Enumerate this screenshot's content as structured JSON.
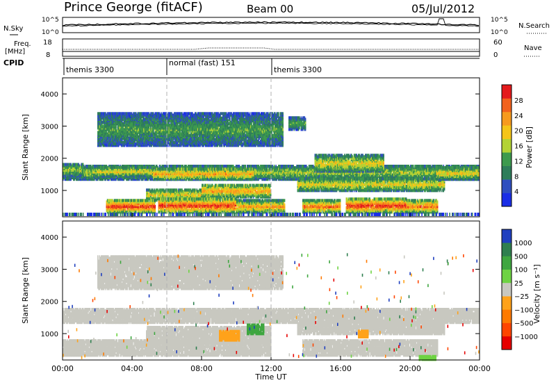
{
  "header": {
    "station": "Prince George (fitACF)",
    "beam": "Beam 00",
    "date": "05/Jul/2012"
  },
  "noise_panel": {
    "left_label": "N.Sky",
    "right_label": "N.Search",
    "left_ticks": [
      "10^5",
      "10^0"
    ],
    "right_ticks": [
      "10^5",
      "10^0"
    ]
  },
  "freq_panel": {
    "left_label_1": "Freq.",
    "left_label_2": "[MHz]",
    "left_ticks": [
      "18",
      "8"
    ],
    "right_label": "Nave",
    "right_ticks": [
      "60",
      "0"
    ]
  },
  "cpid_panel": {
    "label": "CPID",
    "segments": [
      {
        "start_hour": 0,
        "end_hour": 6,
        "name": "themis 3300"
      },
      {
        "start_hour": 6,
        "end_hour": 12,
        "name": "normal (fast) 151"
      },
      {
        "start_hour": 12,
        "end_hour": 24,
        "name": "themis 3300"
      }
    ]
  },
  "x_axis": {
    "label": "Time UT",
    "ticks": [
      "00:00",
      "04:00",
      "08:00",
      "12:00",
      "16:00",
      "20:00",
      "00:00"
    ]
  },
  "power_panel": {
    "ylabel": "Slant Range [km]",
    "yticks": [
      "4000",
      "3000",
      "2000",
      "1000"
    ],
    "colorbar_label": "Power [dB]",
    "colorbar_ticks": [
      "28",
      "24",
      "20",
      "16",
      "12",
      "8",
      "4"
    ],
    "colors": [
      "#1a2ee6",
      "#2f4fbf",
      "#2e7d5a",
      "#3d9a4e",
      "#b3d335",
      "#f5c518",
      "#f79a1e",
      "#f2621d",
      "#e41a1c"
    ]
  },
  "velocity_panel": {
    "ylabel": "Slant Range [km]",
    "yticks": [
      "4000",
      "3000",
      "2000",
      "1000"
    ],
    "colorbar_label": "Velocity [m s⁻¹]",
    "colorbar_ticks": [
      "1000",
      "500",
      "100",
      "25",
      "−25",
      "−100",
      "−500",
      "−1000"
    ],
    "colors": [
      "#1f3fbf",
      "#2f7f4f",
      "#3fa640",
      "#6ed343",
      "#c8c8c0",
      "#ffa21a",
      "#ff7a00",
      "#ff4500",
      "#e60000"
    ],
    "ground_scatter_color": "#c8c8c0"
  },
  "chart_data": {
    "type": "heatmap",
    "x_range_hours": [
      0,
      24
    ],
    "y_range_km": [
      180,
      4500
    ],
    "power_bands": [
      {
        "t0": 0.0,
        "t1": 24.0,
        "r0": 1350,
        "r1": 1800,
        "level": 4
      },
      {
        "t0": 0.0,
        "t1": 1.2,
        "r0": 1450,
        "r1": 1850,
        "level": 4
      },
      {
        "t0": 2.0,
        "t1": 5.2,
        "r0": 1450,
        "r1": 1750,
        "level": 5
      },
      {
        "t0": 5.2,
        "t1": 11.0,
        "r0": 1350,
        "r1": 1700,
        "level": 6
      },
      {
        "t0": 4.8,
        "t1": 9.0,
        "r0": 700,
        "r1": 1050,
        "level": 5
      },
      {
        "t0": 8.0,
        "t1": 12.0,
        "r0": 800,
        "r1": 1200,
        "level": 6
      },
      {
        "t0": 2.5,
        "t1": 5.3,
        "r0": 330,
        "r1": 700,
        "level": 8
      },
      {
        "t0": 5.5,
        "t1": 10.0,
        "r0": 330,
        "r1": 750,
        "level": 8
      },
      {
        "t0": 10.0,
        "t1": 12.8,
        "r0": 330,
        "r1": 700,
        "level": 6
      },
      {
        "t0": 13.8,
        "t1": 16.0,
        "r0": 330,
        "r1": 700,
        "level": 7
      },
      {
        "t0": 16.3,
        "t1": 19.8,
        "r0": 330,
        "r1": 750,
        "level": 8
      },
      {
        "t0": 19.8,
        "t1": 21.6,
        "r0": 330,
        "r1": 700,
        "level": 7
      },
      {
        "t0": 13.5,
        "t1": 22.0,
        "r0": 1000,
        "r1": 1400,
        "level": 5
      },
      {
        "t0": 14.5,
        "t1": 18.5,
        "r0": 1600,
        "r1": 2100,
        "level": 5
      },
      {
        "t0": 21.5,
        "t1": 24.0,
        "r0": 1350,
        "r1": 1750,
        "level": 5
      },
      {
        "t0": 2.0,
        "t1": 12.7,
        "r0": 2400,
        "r1": 3400,
        "level": 3
      },
      {
        "t0": 13.0,
        "t1": 14.0,
        "r0": 2900,
        "r1": 3300,
        "level": 3
      }
    ],
    "velocity_bands": [
      {
        "t0": 0.0,
        "t1": 24.0,
        "r0": 1350,
        "r1": 1800,
        "color": "#c8c8c0"
      },
      {
        "t0": 0.0,
        "t1": 12.0,
        "r0": 330,
        "r1": 800,
        "color": "#c8c8c0"
      },
      {
        "t0": 13.8,
        "t1": 21.6,
        "r0": 330,
        "r1": 800,
        "color": "#c8c8c0"
      },
      {
        "t0": 4.8,
        "t1": 12.0,
        "r0": 700,
        "r1": 1200,
        "color": "#c8c8c0"
      },
      {
        "t0": 13.5,
        "t1": 22.0,
        "r0": 1000,
        "r1": 1400,
        "color": "#c8c8c0"
      },
      {
        "t0": 2.0,
        "t1": 12.7,
        "r0": 2400,
        "r1": 3400,
        "color": "#c8c8c0"
      },
      {
        "t0": 9.0,
        "t1": 10.2,
        "r0": 800,
        "r1": 1100,
        "color": "#ffa21a"
      },
      {
        "t0": 10.6,
        "t1": 11.6,
        "r0": 1000,
        "r1": 1300,
        "color": "#3fa640"
      },
      {
        "t0": 17.0,
        "t1": 17.6,
        "r0": 900,
        "r1": 1100,
        "color": "#ffa21a"
      },
      {
        "t0": 20.5,
        "t1": 21.5,
        "r0": 200,
        "r1": 300,
        "color": "#6ed343"
      }
    ]
  }
}
